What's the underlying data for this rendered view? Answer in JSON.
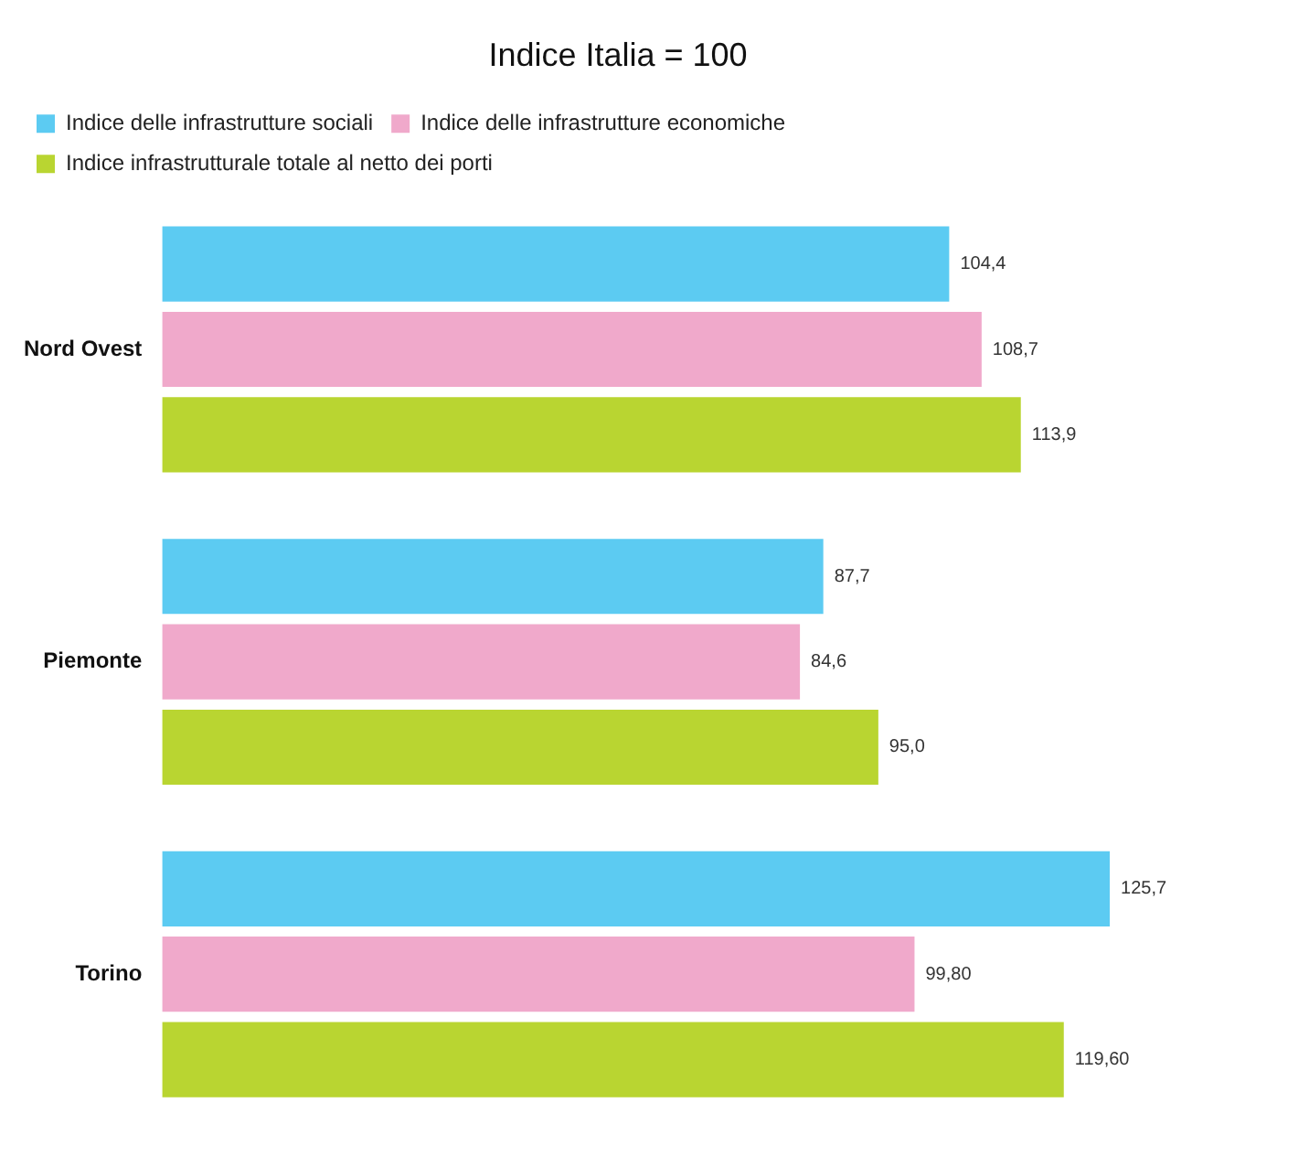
{
  "chart_data": {
    "type": "bar",
    "orientation": "horizontal",
    "title": "Indice Italia = 100",
    "categories": [
      "Nord Ovest",
      "Piemonte",
      "Torino"
    ],
    "series": [
      {
        "name": "Indice delle infrastrutture sociali",
        "color": "#5ccbf2",
        "values": [
          104.4,
          87.7,
          125.7
        ],
        "value_labels": [
          "104,4",
          "87,7",
          "125,7"
        ]
      },
      {
        "name": "Indice delle infrastrutture economiche",
        "color": "#f0a9cb",
        "values": [
          108.7,
          84.6,
          99.8
        ],
        "value_labels": [
          "108,7",
          "84,6",
          "99,80"
        ]
      },
      {
        "name": "Indice infrastrutturale totale al netto dei porti",
        "color": "#b9d531",
        "values": [
          113.9,
          95.0,
          119.6
        ],
        "value_labels": [
          "113,9",
          "95,0",
          "119,60"
        ]
      }
    ],
    "legend": "top left"
  }
}
